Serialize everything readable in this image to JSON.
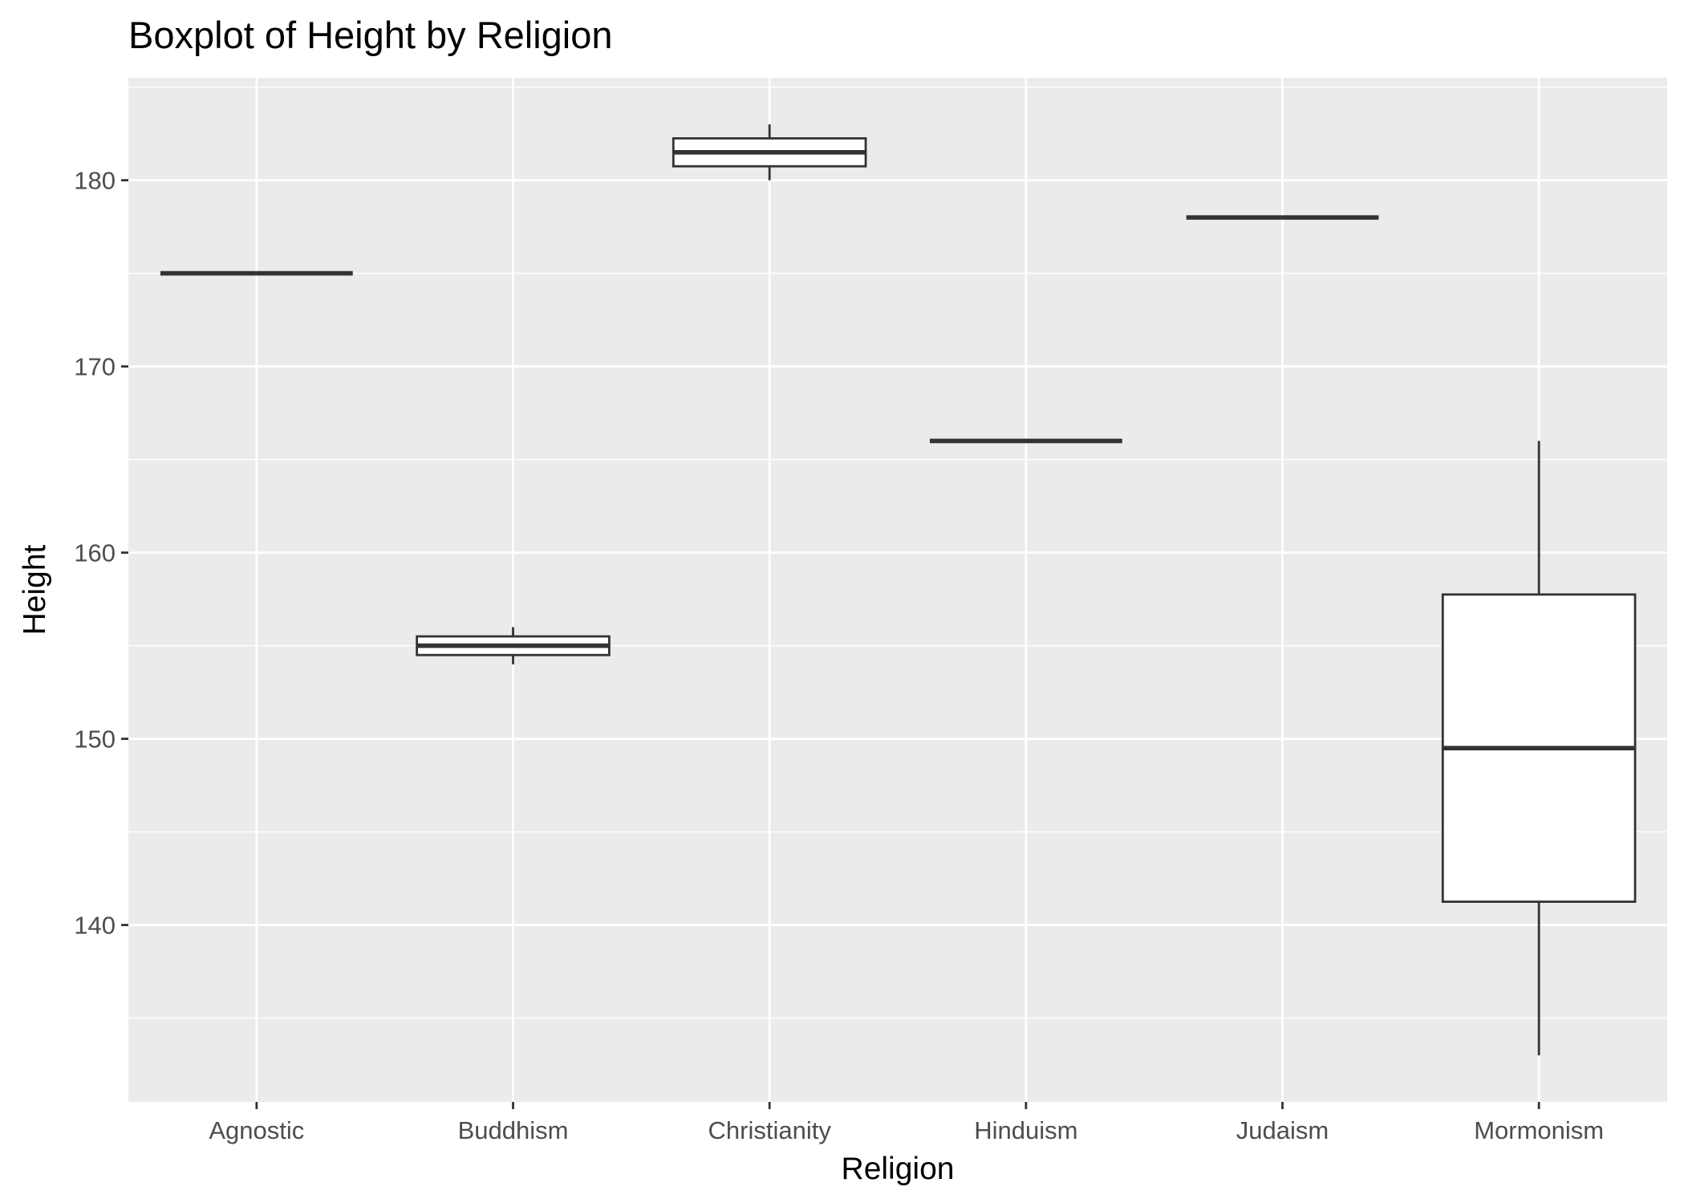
{
  "chart_data": {
    "type": "boxplot",
    "title": "Boxplot of Height by Religion",
    "xlabel": "Religion",
    "ylabel": "Height",
    "ylim": [
      130.5,
      185.5
    ],
    "yticks": [
      140,
      150,
      160,
      170,
      180
    ],
    "grid": true,
    "legend": "none",
    "colors": {
      "panel": "#ebebeb",
      "grid": "#ffffff",
      "box_fill": "#ffffff",
      "box_line": "#333333",
      "tick_label": "#4d4d4d"
    },
    "categories": [
      "Agnostic",
      "Buddhism",
      "Christianity",
      "Hinduism",
      "Judaism",
      "Mormonism"
    ],
    "boxes": [
      {
        "category": "Agnostic",
        "min": 175,
        "q1": 175,
        "median": 175,
        "q3": 175,
        "max": 175
      },
      {
        "category": "Buddhism",
        "min": 154,
        "q1": 154.5,
        "median": 155,
        "q3": 155.5,
        "max": 156
      },
      {
        "category": "Christianity",
        "min": 180,
        "q1": 180.75,
        "median": 181.5,
        "q3": 182.25,
        "max": 183
      },
      {
        "category": "Hinduism",
        "min": 166,
        "q1": 166,
        "median": 166,
        "q3": 166,
        "max": 166
      },
      {
        "category": "Judaism",
        "min": 178,
        "q1": 178,
        "median": 178,
        "q3": 178,
        "max": 178
      },
      {
        "category": "Mormonism",
        "min": 133,
        "q1": 141.25,
        "median": 149.5,
        "q3": 157.75,
        "max": 166
      }
    ]
  }
}
